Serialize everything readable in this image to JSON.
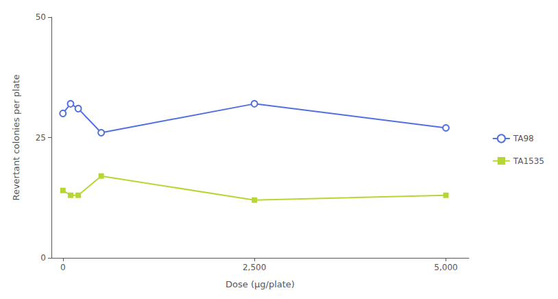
{
  "chart_data": {
    "type": "line",
    "x": [
      0,
      100,
      200,
      500,
      2500,
      5000
    ],
    "series": [
      {
        "name": "TA98",
        "values": [
          30,
          32,
          31,
          26,
          32,
          27
        ],
        "marker": "circle"
      },
      {
        "name": "TA1535",
        "values": [
          14,
          13,
          13,
          17,
          12,
          13
        ],
        "marker": "square"
      }
    ],
    "xlabel": "Dose (μg/plate)",
    "ylabel": "Revertant colonies per plate",
    "xlim": [
      -150,
      5300
    ],
    "ylim": [
      0,
      50
    ],
    "xticks": [
      0,
      {
        "value": 2500,
        "label": "2,500"
      },
      {
        "value": 5000,
        "label": "5,000"
      }
    ],
    "yticks": [
      0,
      25,
      50
    ],
    "grid": false,
    "legend": "right"
  }
}
